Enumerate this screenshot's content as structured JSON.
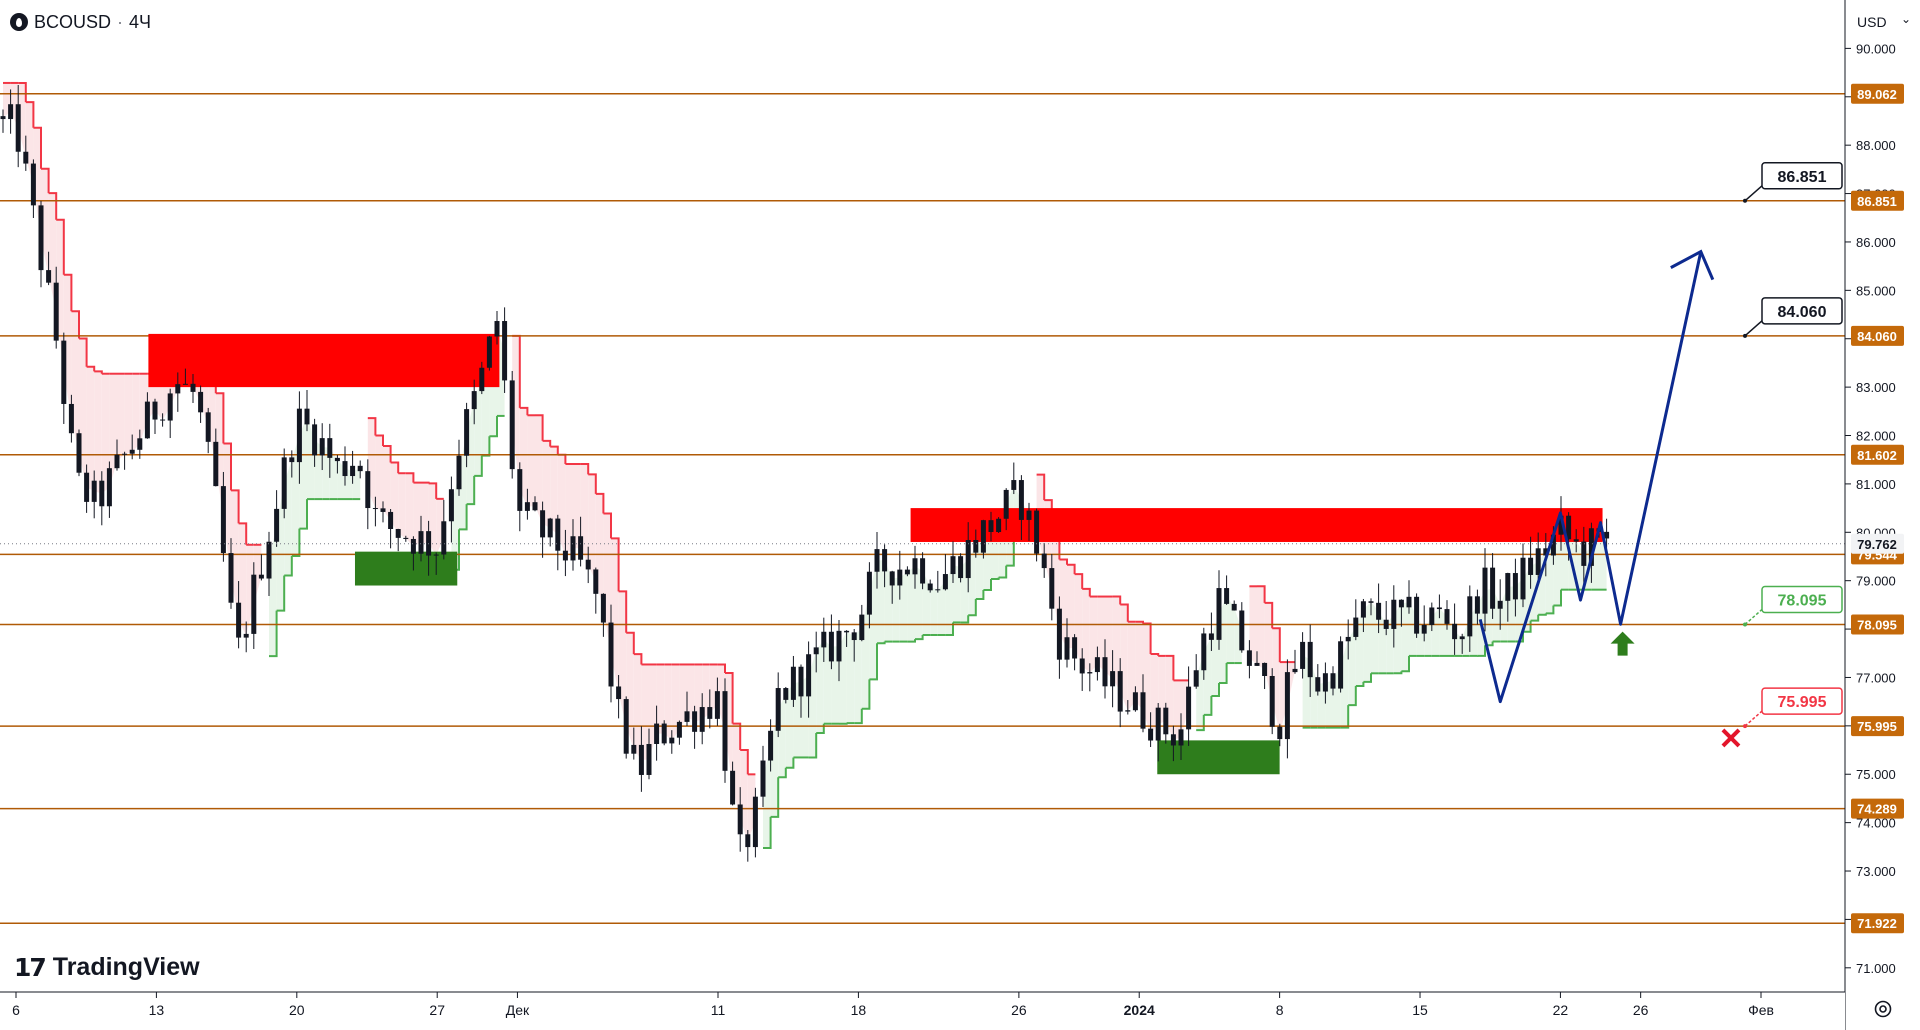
{
  "header": {
    "symbol": "BCOUSD",
    "separator": "·",
    "interval": "4Ч"
  },
  "currency": {
    "label": "USD",
    "chevron": "⌄"
  },
  "brand": {
    "name": "TradingView",
    "icon": "tradingview-logo-icon"
  },
  "settings_icon": "gear-icon",
  "colors": {
    "level": "#b05a06",
    "level_tag": "#c4690a",
    "candle": "#131722",
    "resistance_line": "#f23645",
    "resistance_fill": "#fbe2e4",
    "support_line": "#4caf50",
    "support_fill": "#e6f4e7",
    "red_zone": "#ff0000",
    "green_zone": "#2e7d1c",
    "forecast": "#0d2a8f",
    "target_arrow": "#2e7d1c",
    "stop_mark": "#e3152b"
  },
  "chart_data": {
    "type": "candlestick",
    "title": "",
    "xlabel": "",
    "ylabel": "",
    "ylim": [
      70.5,
      91.0
    ],
    "y_ticks": [
      "71.000",
      "72.000",
      "73.000",
      "74.000",
      "75.000",
      "76.000",
      "77.000",
      "78.000",
      "79.000",
      "80.000",
      "81.000",
      "82.000",
      "83.000",
      "84.000",
      "85.000",
      "86.000",
      "87.000",
      "88.000",
      "89.000",
      "90.000"
    ],
    "x_ticks": [
      {
        "label": "6",
        "date": "2023-11-06"
      },
      {
        "label": "13",
        "date": "2023-11-13"
      },
      {
        "label": "20",
        "date": "2023-11-20"
      },
      {
        "label": "27",
        "date": "2023-11-27"
      },
      {
        "label": "Дек",
        "date": "2023-12-01"
      },
      {
        "label": "11",
        "date": "2023-12-11"
      },
      {
        "label": "18",
        "date": "2023-12-18"
      },
      {
        "label": "26",
        "date": "2023-12-26"
      },
      {
        "label": "2024",
        "date": "2024-01-01"
      },
      {
        "label": "8",
        "date": "2024-01-08"
      },
      {
        "label": "15",
        "date": "2024-01-15"
      },
      {
        "label": "22",
        "date": "2024-01-22"
      },
      {
        "label": "26",
        "date": "2024-01-26"
      },
      {
        "label": "Фев",
        "date": "2024-02-01"
      }
    ],
    "price_path": [
      {
        "date": "2023-11-06",
        "close": 88.4
      },
      {
        "date": "2023-11-07",
        "close": 86.2
      },
      {
        "date": "2023-11-08",
        "close": 84.0
      },
      {
        "date": "2023-11-09",
        "close": 81.0
      },
      {
        "date": "2023-11-10",
        "close": 80.6
      },
      {
        "date": "2023-11-13",
        "close": 82.6
      },
      {
        "date": "2023-11-14",
        "close": 83.1
      },
      {
        "date": "2023-11-15",
        "close": 82.8
      },
      {
        "date": "2023-11-16",
        "close": 80.5
      },
      {
        "date": "2023-11-17",
        "close": 77.4
      },
      {
        "date": "2023-11-20",
        "close": 82.3
      },
      {
        "date": "2023-11-21",
        "close": 82.0
      },
      {
        "date": "2023-11-22",
        "close": 81.3
      },
      {
        "date": "2023-11-23",
        "close": 81.6
      },
      {
        "date": "2023-11-24",
        "close": 80.2
      },
      {
        "date": "2023-11-27",
        "close": 79.7
      },
      {
        "date": "2023-11-28",
        "close": 81.7
      },
      {
        "date": "2023-11-29",
        "close": 82.9
      },
      {
        "date": "2023-11-30",
        "close": 84.4
      },
      {
        "date": "2023-12-01",
        "close": 80.4
      },
      {
        "date": "2023-12-04",
        "close": 79.4
      },
      {
        "date": "2023-12-05",
        "close": 78.6
      },
      {
        "date": "2023-12-06",
        "close": 76.2
      },
      {
        "date": "2023-12-07",
        "close": 75.0
      },
      {
        "date": "2023-12-08",
        "close": 75.8
      },
      {
        "date": "2023-12-11",
        "close": 76.6
      },
      {
        "date": "2023-12-12",
        "close": 73.2
      },
      {
        "date": "2023-12-13",
        "close": 74.3
      },
      {
        "date": "2023-12-14",
        "close": 76.6
      },
      {
        "date": "2023-12-15",
        "close": 77.0
      },
      {
        "date": "2023-12-18",
        "close": 78.2
      },
      {
        "date": "2023-12-19",
        "close": 79.3
      },
      {
        "date": "2023-12-20",
        "close": 79.3
      },
      {
        "date": "2023-12-21",
        "close": 79.4
      },
      {
        "date": "2023-12-22",
        "close": 79.0
      },
      {
        "date": "2023-12-26",
        "close": 80.8
      },
      {
        "date": "2023-12-27",
        "close": 79.6
      },
      {
        "date": "2023-12-28",
        "close": 77.8
      },
      {
        "date": "2023-12-29",
        "close": 77.3
      },
      {
        "date": "2024-01-02",
        "close": 76.0
      },
      {
        "date": "2024-01-03",
        "close": 75.8
      },
      {
        "date": "2024-01-04",
        "close": 77.6
      },
      {
        "date": "2024-01-05",
        "close": 78.6
      },
      {
        "date": "2024-01-08",
        "close": 76.1
      },
      {
        "date": "2024-01-09",
        "close": 77.6
      },
      {
        "date": "2024-01-10",
        "close": 76.8
      },
      {
        "date": "2024-01-11",
        "close": 77.4
      },
      {
        "date": "2024-01-12",
        "close": 78.3
      },
      {
        "date": "2024-01-15",
        "close": 78.2
      },
      {
        "date": "2024-01-16",
        "close": 78.3
      },
      {
        "date": "2024-01-17",
        "close": 77.9
      },
      {
        "date": "2024-01-18",
        "close": 78.9
      },
      {
        "date": "2024-01-19",
        "close": 78.6
      },
      {
        "date": "2024-01-22",
        "close": 80.0
      },
      {
        "date": "2024-01-23",
        "close": 79.6
      },
      {
        "date": "2024-01-24",
        "close": 79.8
      }
    ],
    "last_price": "79.762",
    "levels": [
      "89.062",
      "86.851",
      "84.060",
      "81.602",
      "79.544",
      "78.095",
      "75.995",
      "74.289",
      "71.922"
    ],
    "callouts": [
      {
        "label": "86.851",
        "price": 86.851,
        "color": "#131722"
      },
      {
        "label": "84.060",
        "price": 84.06,
        "color": "#131722"
      },
      {
        "label": "78.095",
        "price": 78.095,
        "color": "#4caf50"
      },
      {
        "label": "75.995",
        "price": 75.995,
        "color": "#f23645"
      }
    ],
    "red_zones": [
      {
        "from": "2023-11-13",
        "to": "2023-11-30",
        "low": 83.0,
        "high": 84.1
      },
      {
        "from": "2023-12-21",
        "to": "2024-01-24",
        "low": 79.8,
        "high": 80.5
      }
    ],
    "green_zones": [
      {
        "from": "2023-11-23",
        "to": "2023-11-28",
        "low": 78.9,
        "high": 79.6
      },
      {
        "from": "2024-01-02",
        "to": "2024-01-08",
        "low": 75.0,
        "high": 75.7
      }
    ],
    "forecast_path": [
      {
        "date": "2024-01-18",
        "price": 78.2
      },
      {
        "date": "2024-01-19",
        "price": 76.5
      },
      {
        "date": "2024-01-22",
        "price": 80.4
      },
      {
        "date": "2024-01-23",
        "price": 78.6
      },
      {
        "date": "2024-01-24",
        "price": 80.2
      },
      {
        "date": "2024-01-25",
        "price": 78.1
      },
      {
        "date": "2024-01-29",
        "price": 85.8
      }
    ],
    "buy_signal": {
      "date": "2024-01-25",
      "price": 77.7
    },
    "stop_signal": {
      "date": "2024-01-31",
      "price": 75.75
    }
  }
}
